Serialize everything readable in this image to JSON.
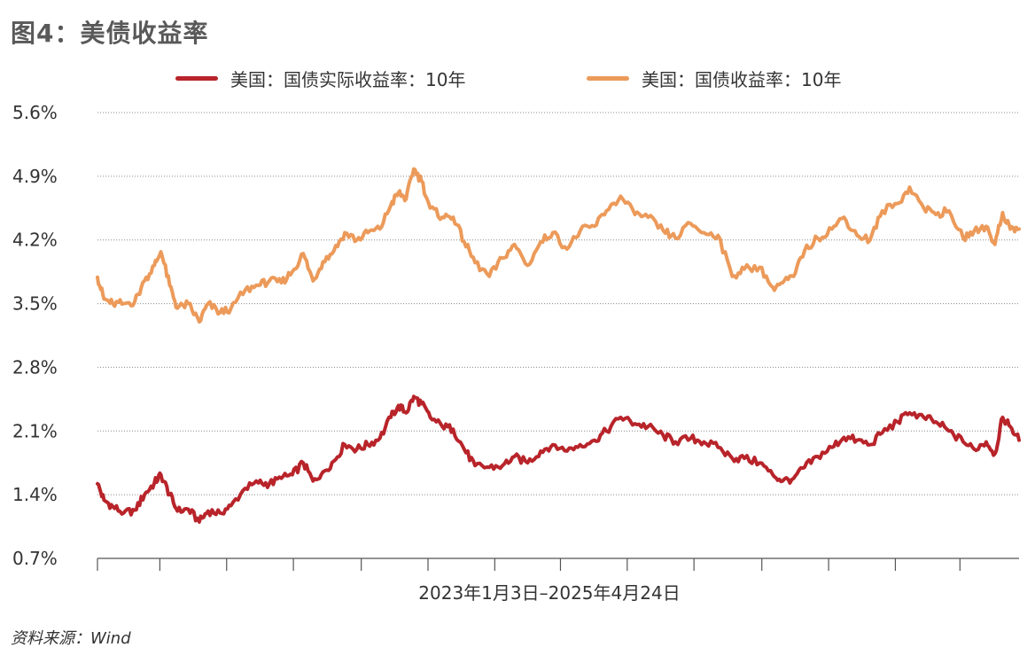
{
  "page": {
    "title": "图4：美债收益率",
    "source": "资料来源：Wind"
  },
  "colors": {
    "real": "#B8242A",
    "nominal": "#EC9A5A",
    "grid": "#888888",
    "axis": "#555555"
  },
  "chart_data": {
    "type": "line",
    "title": "图4：美债收益率",
    "xlabel": "2023年1月3日–2025年4月24日",
    "x_start": "2023-01-03",
    "x_end": "2025-04-24",
    "ylim": [
      0.7,
      5.6
    ],
    "yticks": [
      5.6,
      4.9,
      4.2,
      3.5,
      2.8,
      2.1,
      1.4,
      0.7
    ],
    "ytick_labels": [
      "5.6%",
      "4.9%",
      "4.2%",
      "3.5%",
      "2.8%",
      "2.1%",
      "1.4%",
      "0.7%"
    ],
    "grid": true,
    "legend_position": "top",
    "series": [
      {
        "name": "美国：国债实际收益率：10年",
        "color": "#B8242A",
        "points": [
          [
            "2023-01-03",
            1.52
          ],
          [
            "2023-01-09",
            1.34
          ],
          [
            "2023-01-17",
            1.27
          ],
          [
            "2023-01-27",
            1.2
          ],
          [
            "2023-02-06",
            1.23
          ],
          [
            "2023-02-15",
            1.4
          ],
          [
            "2023-02-24",
            1.53
          ],
          [
            "2023-03-02",
            1.62
          ],
          [
            "2023-03-10",
            1.4
          ],
          [
            "2023-03-17",
            1.22
          ],
          [
            "2023-03-27",
            1.24
          ],
          [
            "2023-04-06",
            1.1
          ],
          [
            "2023-04-14",
            1.22
          ],
          [
            "2023-04-25",
            1.2
          ],
          [
            "2023-05-05",
            1.28
          ],
          [
            "2023-05-18",
            1.47
          ],
          [
            "2023-05-30",
            1.53
          ],
          [
            "2023-06-09",
            1.52
          ],
          [
            "2023-06-20",
            1.58
          ],
          [
            "2023-06-30",
            1.62
          ],
          [
            "2023-07-10",
            1.75
          ],
          [
            "2023-07-19",
            1.55
          ],
          [
            "2023-07-28",
            1.65
          ],
          [
            "2023-08-07",
            1.77
          ],
          [
            "2023-08-17",
            1.95
          ],
          [
            "2023-08-28",
            1.9
          ],
          [
            "2023-09-07",
            1.95
          ],
          [
            "2023-09-18",
            2.02
          ],
          [
            "2023-09-28",
            2.25
          ],
          [
            "2023-10-05",
            2.38
          ],
          [
            "2023-10-12",
            2.3
          ],
          [
            "2023-10-19",
            2.48
          ],
          [
            "2023-10-26",
            2.4
          ],
          [
            "2023-11-03",
            2.25
          ],
          [
            "2023-11-14",
            2.15
          ],
          [
            "2023-11-24",
            2.12
          ],
          [
            "2023-12-04",
            1.9
          ],
          [
            "2023-12-14",
            1.72
          ],
          [
            "2023-12-27",
            1.7
          ],
          [
            "2024-01-08",
            1.72
          ],
          [
            "2024-01-19",
            1.82
          ],
          [
            "2024-01-31",
            1.75
          ],
          [
            "2024-02-12",
            1.88
          ],
          [
            "2024-02-23",
            1.95
          ],
          [
            "2024-03-07",
            1.88
          ],
          [
            "2024-03-19",
            1.95
          ],
          [
            "2024-04-01",
            2.0
          ],
          [
            "2024-04-12",
            2.1
          ],
          [
            "2024-04-25",
            2.25
          ],
          [
            "2024-05-08",
            2.18
          ],
          [
            "2024-05-20",
            2.15
          ],
          [
            "2024-06-03",
            2.05
          ],
          [
            "2024-06-14",
            1.98
          ],
          [
            "2024-06-28",
            2.02
          ],
          [
            "2024-07-10",
            1.98
          ],
          [
            "2024-07-23",
            1.92
          ],
          [
            "2024-08-05",
            1.8
          ],
          [
            "2024-08-16",
            1.8
          ],
          [
            "2024-08-30",
            1.75
          ],
          [
            "2024-09-11",
            1.62
          ],
          [
            "2024-09-20",
            1.55
          ],
          [
            "2024-09-30",
            1.58
          ],
          [
            "2024-10-10",
            1.7
          ],
          [
            "2024-10-22",
            1.82
          ],
          [
            "2024-11-04",
            1.92
          ],
          [
            "2024-11-15",
            2.03
          ],
          [
            "2024-11-27",
            2.0
          ],
          [
            "2024-12-09",
            1.95
          ],
          [
            "2024-12-20",
            2.08
          ],
          [
            "2025-01-03",
            2.2
          ],
          [
            "2025-01-14",
            2.3
          ],
          [
            "2025-01-27",
            2.25
          ],
          [
            "2025-02-07",
            2.2
          ],
          [
            "2025-02-19",
            2.1
          ],
          [
            "2025-03-04",
            1.98
          ],
          [
            "2025-03-14",
            1.9
          ],
          [
            "2025-03-25",
            1.98
          ],
          [
            "2025-04-02",
            1.85
          ],
          [
            "2025-04-09",
            2.25
          ],
          [
            "2025-04-16",
            2.15
          ],
          [
            "2025-04-24",
            2.0
          ]
        ]
      },
      {
        "name": "美国：国债收益率：10年",
        "color": "#EC9A5A",
        "points": [
          [
            "2023-01-03",
            3.79
          ],
          [
            "2023-01-09",
            3.55
          ],
          [
            "2023-01-17",
            3.5
          ],
          [
            "2023-01-27",
            3.5
          ],
          [
            "2023-02-06",
            3.52
          ],
          [
            "2023-02-15",
            3.75
          ],
          [
            "2023-02-24",
            3.92
          ],
          [
            "2023-03-02",
            4.07
          ],
          [
            "2023-03-10",
            3.7
          ],
          [
            "2023-03-17",
            3.45
          ],
          [
            "2023-03-27",
            3.5
          ],
          [
            "2023-04-06",
            3.3
          ],
          [
            "2023-04-14",
            3.5
          ],
          [
            "2023-04-25",
            3.4
          ],
          [
            "2023-05-05",
            3.45
          ],
          [
            "2023-05-18",
            3.65
          ],
          [
            "2023-05-30",
            3.7
          ],
          [
            "2023-06-09",
            3.75
          ],
          [
            "2023-06-20",
            3.73
          ],
          [
            "2023-06-30",
            3.85
          ],
          [
            "2023-07-10",
            4.05
          ],
          [
            "2023-07-19",
            3.75
          ],
          [
            "2023-07-28",
            3.96
          ],
          [
            "2023-08-07",
            4.08
          ],
          [
            "2023-08-17",
            4.28
          ],
          [
            "2023-08-28",
            4.2
          ],
          [
            "2023-09-07",
            4.28
          ],
          [
            "2023-09-18",
            4.32
          ],
          [
            "2023-09-28",
            4.58
          ],
          [
            "2023-10-05",
            4.72
          ],
          [
            "2023-10-12",
            4.65
          ],
          [
            "2023-10-19",
            4.98
          ],
          [
            "2023-10-26",
            4.85
          ],
          [
            "2023-11-03",
            4.55
          ],
          [
            "2023-11-14",
            4.45
          ],
          [
            "2023-11-24",
            4.45
          ],
          [
            "2023-12-04",
            4.18
          ],
          [
            "2023-12-14",
            3.95
          ],
          [
            "2023-12-27",
            3.8
          ],
          [
            "2024-01-08",
            4.0
          ],
          [
            "2024-01-19",
            4.15
          ],
          [
            "2024-01-31",
            3.92
          ],
          [
            "2024-02-12",
            4.18
          ],
          [
            "2024-02-23",
            4.28
          ],
          [
            "2024-03-07",
            4.1
          ],
          [
            "2024-03-19",
            4.3
          ],
          [
            "2024-04-01",
            4.35
          ],
          [
            "2024-04-12",
            4.52
          ],
          [
            "2024-04-25",
            4.68
          ],
          [
            "2024-05-08",
            4.48
          ],
          [
            "2024-05-20",
            4.45
          ],
          [
            "2024-06-03",
            4.3
          ],
          [
            "2024-06-14",
            4.22
          ],
          [
            "2024-06-28",
            4.38
          ],
          [
            "2024-07-10",
            4.28
          ],
          [
            "2024-07-23",
            4.25
          ],
          [
            "2024-08-05",
            3.8
          ],
          [
            "2024-08-16",
            3.88
          ],
          [
            "2024-08-30",
            3.9
          ],
          [
            "2024-09-11",
            3.68
          ],
          [
            "2024-09-20",
            3.73
          ],
          [
            "2024-09-30",
            3.8
          ],
          [
            "2024-10-10",
            4.08
          ],
          [
            "2024-10-22",
            4.22
          ],
          [
            "2024-11-04",
            4.32
          ],
          [
            "2024-11-15",
            4.45
          ],
          [
            "2024-11-27",
            4.25
          ],
          [
            "2024-12-09",
            4.2
          ],
          [
            "2024-12-20",
            4.52
          ],
          [
            "2025-01-03",
            4.6
          ],
          [
            "2025-01-14",
            4.78
          ],
          [
            "2025-01-27",
            4.55
          ],
          [
            "2025-02-07",
            4.48
          ],
          [
            "2025-02-19",
            4.52
          ],
          [
            "2025-03-04",
            4.22
          ],
          [
            "2025-03-14",
            4.3
          ],
          [
            "2025-03-25",
            4.35
          ],
          [
            "2025-04-02",
            4.15
          ],
          [
            "2025-04-09",
            4.5
          ],
          [
            "2025-04-16",
            4.32
          ],
          [
            "2025-04-24",
            4.32
          ]
        ]
      }
    ]
  }
}
